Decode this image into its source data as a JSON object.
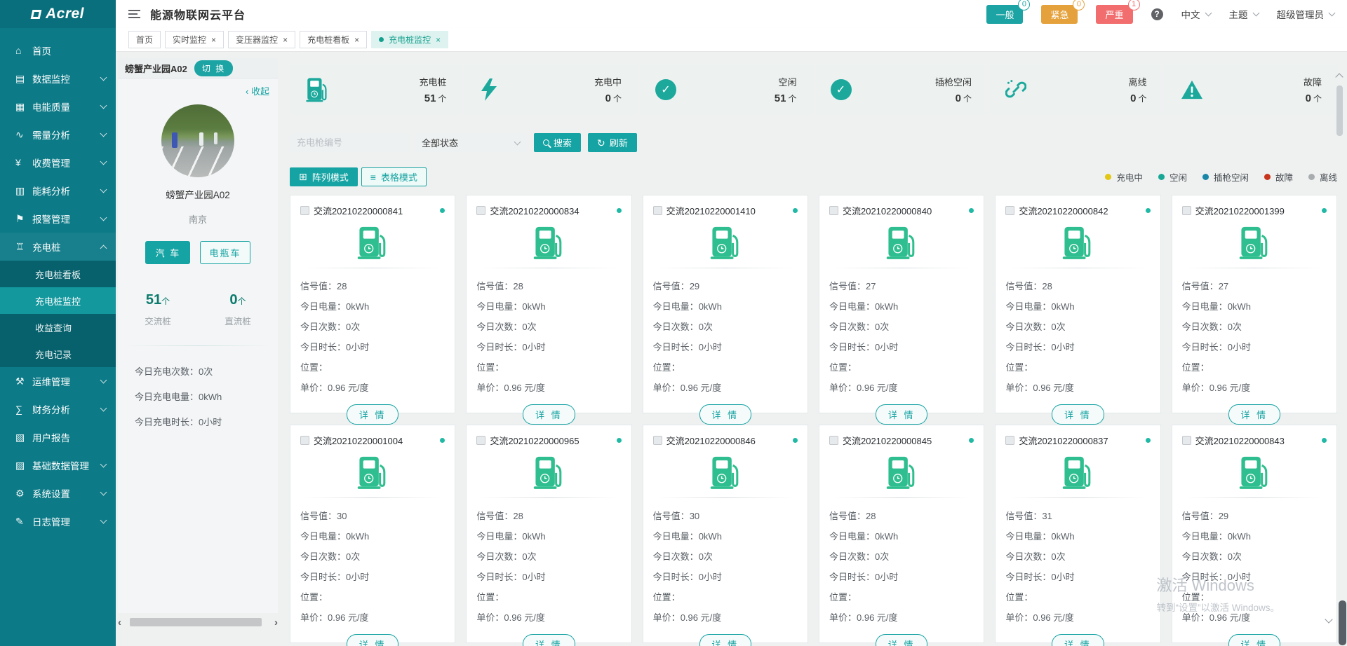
{
  "brand": {
    "logo": "Acrel",
    "title": "能源物联网云平台"
  },
  "header": {
    "alarm_badges": [
      {
        "label": "一般",
        "count": "0",
        "color": "#1ca3a3"
      },
      {
        "label": "紧急",
        "count": "0",
        "color": "#e5a23c"
      },
      {
        "label": "严重",
        "count": "1",
        "color": "#f26d6d"
      }
    ],
    "help_glyph": "?",
    "language": "中文",
    "theme": "主题",
    "user": "超级管理员"
  },
  "tabs": {
    "close_glyph": "×",
    "items": [
      {
        "label": "首页",
        "closable": false,
        "active": false
      },
      {
        "label": "实时监控",
        "closable": true,
        "active": false
      },
      {
        "label": "变压器监控",
        "closable": true,
        "active": false
      },
      {
        "label": "充电桩看板",
        "closable": true,
        "active": false
      },
      {
        "label": "充电桩监控",
        "closable": true,
        "active": true
      }
    ]
  },
  "sidebar": {
    "items": [
      {
        "label": "首页",
        "icon": "home-icon",
        "glyph": "⌂",
        "expandable": false
      },
      {
        "label": "数据监控",
        "icon": "data-monitor-icon",
        "glyph": "▤",
        "expandable": true
      },
      {
        "label": "电能质量",
        "icon": "power-quality-icon",
        "glyph": "▦",
        "expandable": true
      },
      {
        "label": "需量分析",
        "icon": "demand-analysis-icon",
        "glyph": "∿",
        "expandable": true
      },
      {
        "label": "收费管理",
        "icon": "fee-management-icon",
        "glyph": "¥",
        "expandable": true
      },
      {
        "label": "能耗分析",
        "icon": "energy-analysis-icon",
        "glyph": "▥",
        "expandable": true
      },
      {
        "label": "报警管理",
        "icon": "alarm-bell-icon",
        "glyph": "⚑",
        "expandable": true
      },
      {
        "label": "充电桩",
        "icon": "charging-pile-icon",
        "glyph": "♖",
        "expandable": true,
        "expanded": true,
        "children": [
          {
            "label": "充电桩看板",
            "active": false
          },
          {
            "label": "充电桩监控",
            "active": true
          },
          {
            "label": "收益查询",
            "active": false
          },
          {
            "label": "充电记录",
            "active": false
          }
        ]
      },
      {
        "label": "运维管理",
        "icon": "ops-management-icon",
        "glyph": "⚒",
        "expandable": true
      },
      {
        "label": "财务分析",
        "icon": "finance-analysis-icon",
        "glyph": "∑",
        "expandable": true
      },
      {
        "label": "用户报告",
        "icon": "user-report-icon",
        "glyph": "▧",
        "expandable": false
      },
      {
        "label": "基础数据管理",
        "icon": "base-data-icon",
        "glyph": "▨",
        "expandable": true
      },
      {
        "label": "系统设置",
        "icon": "system-settings-icon",
        "glyph": "⚙",
        "expandable": true
      },
      {
        "label": "日志管理",
        "icon": "log-management-icon",
        "glyph": "✎",
        "expandable": true
      }
    ]
  },
  "station_panel": {
    "name": "螃蟹产业园A02",
    "switch_label": "切 换",
    "collapse_label": "收起",
    "photo": "charging-station-parking-photo",
    "title": "螃蟹产业园A02",
    "city": "南京",
    "vehicle_tabs": [
      {
        "label": "汽 车",
        "active": true
      },
      {
        "label": "电瓶车",
        "active": false
      }
    ],
    "pile_stats": [
      {
        "value": "51",
        "unit": "个",
        "label": "交流桩"
      },
      {
        "value": "0",
        "unit": "个",
        "label": "直流桩"
      }
    ],
    "today_stats": [
      {
        "label": "今日充电次数",
        "value": "0次"
      },
      {
        "label": "今日充电电量",
        "value": "0kWh"
      },
      {
        "label": "今日充电时长",
        "value": "0小时"
      }
    ]
  },
  "summary_cards": [
    {
      "label": "充电桩",
      "value": "51",
      "unit": "个",
      "icon": "charging-pile-icon"
    },
    {
      "label": "充电中",
      "value": "0",
      "unit": "个",
      "icon": "lightning-icon"
    },
    {
      "label": "空闲",
      "value": "51",
      "unit": "个",
      "icon": "check-circle-icon"
    },
    {
      "label": "插枪空闲",
      "value": "0",
      "unit": "个",
      "icon": "check-circle-icon"
    },
    {
      "label": "离线",
      "value": "0",
      "unit": "个",
      "icon": "offline-link-icon"
    },
    {
      "label": "故障",
      "value": "0",
      "unit": "个",
      "icon": "warning-triangle-icon"
    }
  ],
  "toolbar": {
    "search_placeholder": "充电枪编号",
    "status_select_value": "全部状态",
    "search_label": "搜索",
    "refresh_label": "刷新",
    "array_mode_label": "阵列模式",
    "table_mode_label": "表格模式"
  },
  "legend": [
    {
      "label": "充电中",
      "color": "#e3c715"
    },
    {
      "label": "空闲",
      "color": "#19a795"
    },
    {
      "label": "插枪空闲",
      "color": "#1b87a8"
    },
    {
      "label": "故障",
      "color": "#c8351d"
    },
    {
      "label": "离线",
      "color": "#a9acaf"
    }
  ],
  "card_labels": {
    "signal": "信号值",
    "today_energy": "今日电量",
    "today_count": "今日次数",
    "today_duration": "今日时长",
    "location": "位置",
    "price": "单价",
    "detail": "详 情"
  },
  "cards": [
    {
      "title": "交流20210220000841",
      "signal": "28",
      "energy": "0kWh",
      "count": "0次",
      "duration": "0小时",
      "location": "",
      "price": "0.96 元/度",
      "status_color": "#1fb9a5"
    },
    {
      "title": "交流20210220000834",
      "signal": "28",
      "energy": "0kWh",
      "count": "0次",
      "duration": "0小时",
      "location": "",
      "price": "0.96 元/度",
      "status_color": "#1fb9a5"
    },
    {
      "title": "交流20210220001410",
      "signal": "29",
      "energy": "0kWh",
      "count": "0次",
      "duration": "0小时",
      "location": "",
      "price": "0.96 元/度",
      "status_color": "#1fb9a5"
    },
    {
      "title": "交流20210220000840",
      "signal": "27",
      "energy": "0kWh",
      "count": "0次",
      "duration": "0小时",
      "location": "",
      "price": "0.96 元/度",
      "status_color": "#1fb9a5"
    },
    {
      "title": "交流20210220000842",
      "signal": "28",
      "energy": "0kWh",
      "count": "0次",
      "duration": "0小时",
      "location": "",
      "price": "0.96 元/度",
      "status_color": "#1fb9a5"
    },
    {
      "title": "交流20210220001399",
      "signal": "27",
      "energy": "0kWh",
      "count": "0次",
      "duration": "0小时",
      "location": "",
      "price": "0.96 元/度",
      "status_color": "#1fb9a5"
    },
    {
      "title": "交流20210220001004",
      "signal": "30",
      "energy": "0kWh",
      "count": "0次",
      "duration": "0小时",
      "location": "",
      "price": "0.96 元/度",
      "status_color": "#1fb9a5"
    },
    {
      "title": "交流20210220000965",
      "signal": "28",
      "energy": "0kWh",
      "count": "0次",
      "duration": "0小时",
      "location": "",
      "price": "0.96 元/度",
      "status_color": "#1fb9a5"
    },
    {
      "title": "交流20210220000846",
      "signal": "30",
      "energy": "0kWh",
      "count": "0次",
      "duration": "0小时",
      "location": "",
      "price": "0.96 元/度",
      "status_color": "#1fb9a5"
    },
    {
      "title": "交流20210220000845",
      "signal": "28",
      "energy": "0kWh",
      "count": "0次",
      "duration": "0小时",
      "location": "",
      "price": "0.96 元/度",
      "status_color": "#1fb9a5"
    },
    {
      "title": "交流20210220000837",
      "signal": "31",
      "energy": "0kWh",
      "count": "0次",
      "duration": "0小时",
      "location": "",
      "price": "0.96 元/度",
      "status_color": "#1fb9a5"
    },
    {
      "title": "交流20210220000843",
      "signal": "29",
      "energy": "0kWh",
      "count": "0次",
      "duration": "0小时",
      "location": "",
      "price": "0.96 元/度",
      "status_color": "#1fb9a5"
    }
  ],
  "watermark": {
    "line1": "激活 Windows",
    "line2": "转到“设置”以激活 Windows。"
  }
}
